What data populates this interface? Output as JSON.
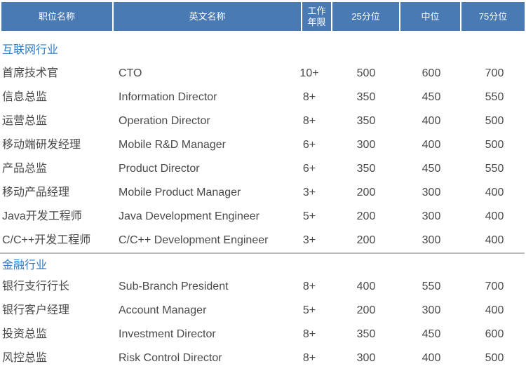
{
  "header": [
    "职位名称",
    "英文名称",
    "工作\n年限",
    "25分位",
    "中位",
    "75分位"
  ],
  "colors": {
    "header_bg": "#4a7ab4",
    "section_title": "#2e7bc4"
  },
  "sections": [
    {
      "title": "互联网行业",
      "rows": [
        [
          "首席技术官",
          "CTO",
          "10+",
          "500",
          "600",
          "700"
        ],
        [
          "信息总监",
          "Information Director",
          "8+",
          "350",
          "450",
          "550"
        ],
        [
          "运营总监",
          "Operation Director",
          "8+",
          "350",
          "400",
          "500"
        ],
        [
          "移动端研发经理",
          "Mobile R&D Manager",
          "6+",
          "300",
          "400",
          "500"
        ],
        [
          "产品总监",
          "Product Director",
          "6+",
          "350",
          "450",
          "550"
        ],
        [
          "移动产品经理",
          "Mobile Product Manager",
          "3+",
          "200",
          "300",
          "400"
        ],
        [
          "Java开发工程师",
          "Java Development Engineer",
          "5+",
          "200",
          "300",
          "400"
        ],
        [
          "C/C++开发工程师",
          "C/C++ Development Engineer",
          "3+",
          "200",
          "300",
          "400"
        ]
      ]
    },
    {
      "title": "金融行业",
      "rows": [
        [
          "银行支行行长",
          "Sub-Branch President",
          "8+",
          "400",
          "550",
          "700"
        ],
        [
          "银行客户经理",
          "Account Manager",
          "5+",
          "200",
          "300",
          "400"
        ],
        [
          "投资总监",
          "Investment Director",
          "8+",
          "350",
          "450",
          "600"
        ],
        [
          "风控总监",
          "Risk Control Director",
          "8+",
          "300",
          "400",
          "500"
        ]
      ]
    }
  ]
}
